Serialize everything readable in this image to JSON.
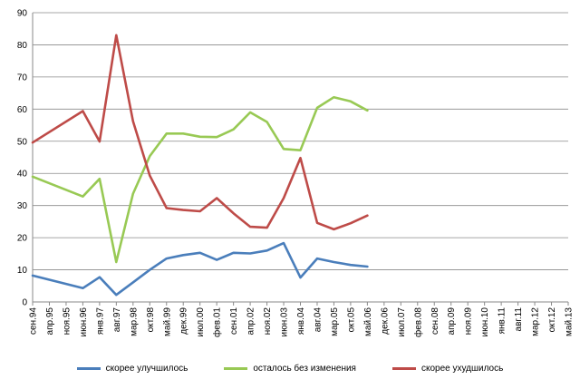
{
  "chart_data": {
    "type": "line",
    "x": [
      "сен.94",
      "апр.95",
      "ноя.95",
      "июн.96",
      "янв.97",
      "авг.97",
      "мар.98",
      "окт.98",
      "май.99",
      "дек.99",
      "июл.00",
      "фев.01",
      "сен.01",
      "апр.02",
      "ноя.02",
      "июн.03",
      "янв.04",
      "авг.04",
      "мар.05",
      "окт.05",
      "май.06",
      "дек.06",
      "июл.07",
      "фев.08",
      "сен.08",
      "апр.09",
      "ноя.09",
      "июн.10",
      "янв.11",
      "авг.11",
      "мар.12",
      "окт.12",
      "май.13"
    ],
    "ylim": [
      0,
      90
    ],
    "yticks": [
      0,
      10,
      20,
      30,
      40,
      50,
      60,
      70,
      80,
      90
    ],
    "grid": true,
    "legend_position": "bottom",
    "series": [
      {
        "name": "скорее улучшилось",
        "color": "#4a7ebb",
        "points": [
          [
            0,
            8.2
          ],
          [
            3,
            4.3
          ],
          [
            4,
            7.7
          ],
          [
            5,
            2.2
          ],
          [
            6,
            6.1
          ],
          [
            7,
            10.0
          ],
          [
            8,
            13.5
          ],
          [
            9,
            14.6
          ],
          [
            10,
            15.3
          ],
          [
            11,
            13.1
          ],
          [
            12,
            15.3
          ],
          [
            13,
            15.1
          ],
          [
            14,
            16.0
          ],
          [
            15,
            18.3
          ],
          [
            16,
            7.6
          ],
          [
            17,
            13.5
          ],
          [
            18,
            12.4
          ],
          [
            19,
            11.5
          ],
          [
            20,
            11.0
          ]
        ]
      },
      {
        "name": "осталось без изменения",
        "color": "#98c954",
        "points": [
          [
            0,
            39.0
          ],
          [
            3,
            32.8
          ],
          [
            4,
            38.3
          ],
          [
            5,
            12.4
          ],
          [
            6,
            33.7
          ],
          [
            7,
            45.4
          ],
          [
            8,
            52.4
          ],
          [
            9,
            52.4
          ],
          [
            10,
            51.4
          ],
          [
            11,
            51.3
          ],
          [
            12,
            53.7
          ],
          [
            13,
            59.0
          ],
          [
            14,
            56.0
          ],
          [
            15,
            47.6
          ],
          [
            16,
            47.2
          ],
          [
            17,
            60.4
          ],
          [
            18,
            63.7
          ],
          [
            19,
            62.4
          ],
          [
            20,
            59.6
          ]
        ]
      },
      {
        "name": "скорее ухудшилось",
        "color": "#be4b48",
        "points": [
          [
            0,
            49.6
          ],
          [
            3,
            59.4
          ],
          [
            4,
            49.9
          ],
          [
            5,
            83.0
          ],
          [
            6,
            56.2
          ],
          [
            7,
            39.3
          ],
          [
            8,
            29.2
          ],
          [
            9,
            28.6
          ],
          [
            10,
            28.2
          ],
          [
            11,
            32.3
          ],
          [
            12,
            27.6
          ],
          [
            13,
            23.4
          ],
          [
            14,
            23.1
          ],
          [
            15,
            32.3
          ],
          [
            16,
            44.8
          ],
          [
            17,
            24.6
          ],
          [
            18,
            22.6
          ],
          [
            19,
            24.5
          ],
          [
            20,
            26.9
          ]
        ]
      }
    ]
  }
}
